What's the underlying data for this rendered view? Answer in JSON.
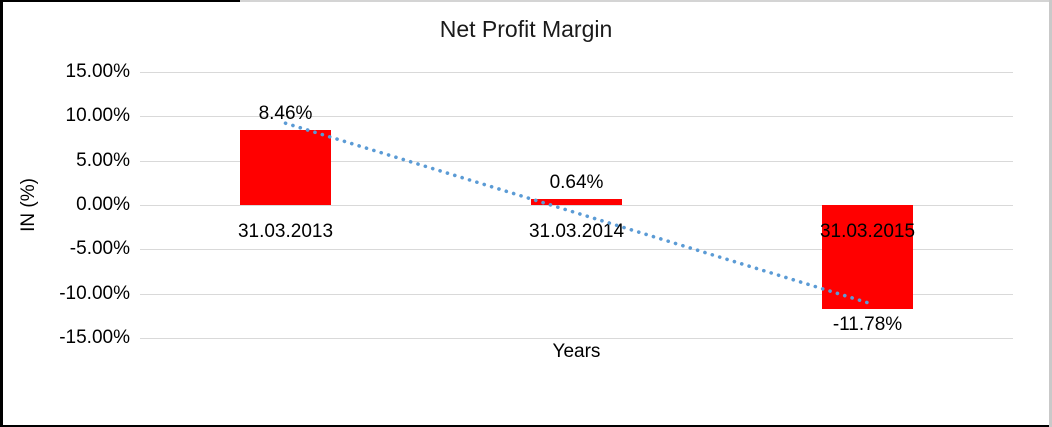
{
  "chart_data": {
    "type": "bar",
    "title": "Net Profit Margin",
    "xlabel": "Years",
    "ylabel": "IN (%)",
    "categories": [
      "31.03.2013",
      "31.03.2014",
      "31.03.2015"
    ],
    "values": [
      8.46,
      0.64,
      -11.78
    ],
    "data_labels": [
      "8.46%",
      "0.64%",
      "-11.78%"
    ],
    "ytick_labels": [
      "15.00%",
      "10.00%",
      "5.00%",
      "0.00%",
      "-5.00%",
      "-10.00%",
      "-15.00%"
    ],
    "ylim": [
      -15,
      15
    ],
    "ytick_step": 5,
    "grid": true,
    "legend": "none",
    "bar_color": "#FF0000",
    "gridline_color": "#D9D9D9",
    "trendline": {
      "type": "linear",
      "style": "dotted",
      "color": "#5B9BD5",
      "start_value_pct": 9.23,
      "end_value_pct": -11.01
    }
  }
}
